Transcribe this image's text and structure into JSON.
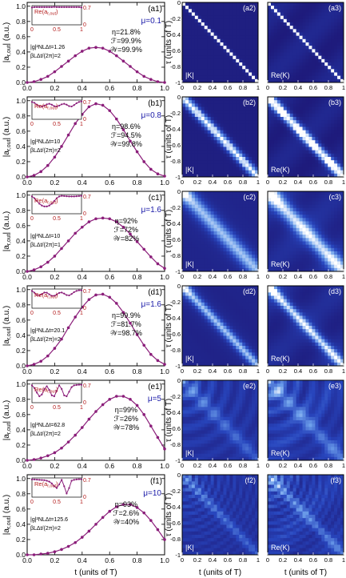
{
  "figure": {
    "left_xlabel": "t (units of T)",
    "right_xlabel_a": "t (units of T)",
    "right_xlabel_b": "t (units of T)",
    "left_ylabel": "|a",
    "left_ylabel_sub": "r,out",
    "left_ylabel_tail": "| (a.u.)",
    "right_ylabel": "τ (units of T)",
    "map_label_abs": "|K|",
    "map_label_re": "Re(K)",
    "inset_label": "Re(a",
    "inset_label_sub": "r,out",
    "inset_label_tail": ")",
    "left_xticks": [
      "0.0",
      "0.2",
      "0.4",
      "0.6",
      "0.8",
      "1.0"
    ],
    "left_yticks": [
      "0.0",
      "0.2",
      "0.4",
      "0.6",
      "0.8",
      "1.0"
    ],
    "map_xticks": [
      "0",
      "0.2",
      "0.4",
      "0.6",
      "0.8",
      "1"
    ],
    "map_yticks": [
      "0",
      "-0.2",
      "-0.4",
      "-0.6",
      "-0.8",
      "-1"
    ],
    "inset_xticks": [
      "0",
      "0.5",
      "1"
    ],
    "inset_ytick_right": "0.7",
    "inset_ytick_right_zero": "0"
  },
  "colors": {
    "curve": "#8b1e7a",
    "blue_text": "#1a1aa8",
    "inset_axis": "#b31b1b",
    "map_dark": "#1a0b63",
    "map_mid": "#3a57c8",
    "map_light": "#ffffff"
  },
  "chart_data": [
    {
      "type": "line",
      "panel": "(a1)",
      "mu": "μ=0.1",
      "param1": "|g|²NLΔt=1.26",
      "param2": "βLΔt/(2π)=2",
      "eta": "η=21.8%",
      "F": "ℱ=99.9%",
      "W": "𝒲=99.9%",
      "x": [
        0,
        0.05,
        0.1,
        0.15,
        0.2,
        0.25,
        0.3,
        0.35,
        0.4,
        0.45,
        0.5,
        0.55,
        0.6,
        0.65,
        0.7,
        0.75,
        0.8,
        0.85,
        0.9,
        0.95,
        1
      ],
      "y": [
        0.0,
        0.01,
        0.04,
        0.08,
        0.14,
        0.21,
        0.28,
        0.35,
        0.41,
        0.45,
        0.46,
        0.45,
        0.41,
        0.35,
        0.28,
        0.21,
        0.14,
        0.08,
        0.04,
        0.01,
        0.0
      ],
      "inset_y": [
        0.95,
        0.97,
        0.97,
        0.97,
        0.97,
        0.97,
        0.97,
        0.97,
        0.97,
        0.98,
        0.97,
        0.97,
        0.97,
        0.97,
        0.97,
        0.97,
        0.97,
        0.97,
        0.97,
        0.97,
        0.95
      ],
      "ylim": [
        0,
        1.05
      ],
      "xlim": [
        0,
        1
      ]
    },
    {
      "type": "line",
      "panel": "(b1)",
      "mu": "μ=0.8",
      "param1": "|g|²NLΔt=10",
      "param2": "βLΔt/(2π)=2",
      "eta": "η=98.6%",
      "F": "ℱ=94.5%",
      "W": "𝒲=99.8%",
      "x": [
        0,
        0.05,
        0.1,
        0.15,
        0.2,
        0.25,
        0.3,
        0.35,
        0.4,
        0.45,
        0.5,
        0.55,
        0.6,
        0.65,
        0.7,
        0.75,
        0.8,
        0.85,
        0.9,
        0.95,
        1
      ],
      "y": [
        0.0,
        0.02,
        0.07,
        0.15,
        0.26,
        0.4,
        0.55,
        0.7,
        0.82,
        0.92,
        0.96,
        0.94,
        0.87,
        0.76,
        0.62,
        0.47,
        0.33,
        0.2,
        0.1,
        0.04,
        0.01
      ],
      "inset_y": [
        0.95,
        0.9,
        0.8,
        0.72,
        0.7,
        0.75,
        0.82,
        0.85,
        0.8,
        0.72,
        0.7,
        0.75,
        0.82,
        0.85,
        0.8,
        0.72,
        0.7,
        0.78,
        0.88,
        0.95,
        0.98
      ],
      "ylim": [
        0,
        1.05
      ],
      "xlim": [
        0,
        1
      ]
    },
    {
      "type": "line",
      "panel": "(c1)",
      "mu": "μ=1.6",
      "param1": "|g|²NLΔt=10",
      "param2": "βLΔt/(2π)=1",
      "eta": "η=92%",
      "F": "ℱ=72%",
      "W": "𝒲=82%",
      "x": [
        0,
        0.05,
        0.1,
        0.15,
        0.2,
        0.25,
        0.3,
        0.35,
        0.4,
        0.45,
        0.5,
        0.55,
        0.6,
        0.65,
        0.7,
        0.75,
        0.8,
        0.85,
        0.9,
        0.95,
        1
      ],
      "y": [
        0.0,
        0.02,
        0.06,
        0.12,
        0.2,
        0.3,
        0.4,
        0.5,
        0.58,
        0.65,
        0.69,
        0.7,
        0.69,
        0.65,
        0.58,
        0.49,
        0.39,
        0.29,
        0.19,
        0.1,
        0.04
      ],
      "inset_y": [
        0.95,
        0.85,
        0.7,
        0.55,
        0.45,
        0.4,
        0.4,
        0.45,
        0.55,
        0.7,
        0.85,
        0.95,
        0.98,
        0.97,
        0.96,
        0.95,
        0.95,
        0.95,
        0.96,
        0.97,
        0.98
      ],
      "ylim": [
        0,
        1.05
      ],
      "xlim": [
        0,
        1
      ]
    },
    {
      "type": "line",
      "panel": "(d1)",
      "mu": "μ=1.6",
      "param1": "|g|²NLΔt=20.1",
      "param2": "βLΔt/(2π)=2",
      "eta": "η=99.9%",
      "F": "ℱ=81.7%",
      "W": "𝒲=98.7%",
      "x": [
        0,
        0.05,
        0.1,
        0.15,
        0.2,
        0.25,
        0.3,
        0.35,
        0.4,
        0.45,
        0.5,
        0.55,
        0.6,
        0.65,
        0.7,
        0.75,
        0.8,
        0.85,
        0.9,
        0.95,
        1
      ],
      "y": [
        0.0,
        0.02,
        0.06,
        0.13,
        0.23,
        0.35,
        0.5,
        0.64,
        0.77,
        0.87,
        0.93,
        0.94,
        0.9,
        0.82,
        0.7,
        0.56,
        0.41,
        0.27,
        0.15,
        0.07,
        0.02
      ],
      "inset_y": [
        0.95,
        0.85,
        0.72,
        0.7,
        0.78,
        0.86,
        0.85,
        0.76,
        0.68,
        0.68,
        0.75,
        0.84,
        0.86,
        0.8,
        0.72,
        0.7,
        0.78,
        0.88,
        0.95,
        0.98,
        0.98
      ],
      "ylim": [
        0,
        1.05
      ],
      "xlim": [
        0,
        1
      ]
    },
    {
      "type": "line",
      "panel": "(e1)",
      "mu": "μ=5",
      "param1": "|g|²NLΔt=62.8",
      "param2": "βLΔt/(2π)=2",
      "eta": "η=99%",
      "F": "ℱ=26%",
      "W": "𝒲=78%",
      "x": [
        0,
        0.05,
        0.1,
        0.15,
        0.2,
        0.25,
        0.3,
        0.35,
        0.4,
        0.45,
        0.5,
        0.55,
        0.6,
        0.65,
        0.7,
        0.75,
        0.8,
        0.85,
        0.9,
        0.95,
        1
      ],
      "y": [
        0.0,
        0.01,
        0.03,
        0.06,
        0.1,
        0.16,
        0.24,
        0.33,
        0.43,
        0.54,
        0.64,
        0.73,
        0.8,
        0.84,
        0.84,
        0.8,
        0.72,
        0.6,
        0.45,
        0.3,
        0.15
      ],
      "inset_y": [
        0.95,
        0.8,
        0.55,
        0.35,
        0.45,
        0.75,
        0.9,
        0.7,
        0.4,
        0.35,
        0.65,
        0.95,
        0.75,
        0.4,
        0.35,
        0.6,
        0.85,
        0.95,
        0.97,
        0.98,
        0.98
      ],
      "ylim": [
        0,
        1.05
      ],
      "xlim": [
        0,
        1
      ]
    },
    {
      "type": "line",
      "panel": "(f1)",
      "mu": "μ=10",
      "param1": "|g|²NLΔt=125.6",
      "param2": "βLΔt/(2π)=2",
      "eta": "η=93%",
      "F": "ℱ=2.6%",
      "W": "𝒲=40%",
      "x": [
        0,
        0.05,
        0.1,
        0.15,
        0.2,
        0.25,
        0.3,
        0.35,
        0.4,
        0.45,
        0.5,
        0.55,
        0.6,
        0.65,
        0.7,
        0.75,
        0.8,
        0.85,
        0.9,
        0.95,
        1
      ],
      "y": [
        0.0,
        0.0,
        0.01,
        0.02,
        0.04,
        0.07,
        0.11,
        0.16,
        0.23,
        0.31,
        0.4,
        0.49,
        0.57,
        0.63,
        0.66,
        0.66,
        0.62,
        0.55,
        0.45,
        0.33,
        0.2
      ],
      "inset_y": [
        0.97,
        0.97,
        0.96,
        0.95,
        0.94,
        0.93,
        0.9,
        0.85,
        0.75,
        0.6,
        0.5,
        0.7,
        0.95,
        0.6,
        0.2,
        0.5,
        0.9,
        0.95,
        0.97,
        0.98,
        0.98
      ],
      "ylim": [
        0,
        1.05
      ],
      "xlim": [
        0,
        1
      ]
    }
  ],
  "maps": [
    {
      "panels": [
        "(a2)",
        "(a3)"
      ],
      "kind": "band",
      "w": 0.018,
      "ripple": 0
    },
    {
      "panels": [
        "(b2)",
        "(b3)"
      ],
      "kind": "band",
      "w": 0.06,
      "ripple": 0.5
    },
    {
      "panels": [
        "(c2)",
        "(c3)"
      ],
      "kind": "diffuse",
      "w": 0.1,
      "ripple": 0.3
    },
    {
      "panels": [
        "(d2)",
        "(d3)"
      ],
      "kind": "diffuse",
      "w": 0.06,
      "ripple": 0.6
    },
    {
      "panels": [
        "(e2)",
        "(e3)"
      ],
      "kind": "fringe",
      "w": 0.08,
      "ripple": 5
    },
    {
      "panels": [
        "(f2)",
        "(f3)"
      ],
      "kind": "fringe",
      "w": 0.06,
      "ripple": 10
    }
  ]
}
